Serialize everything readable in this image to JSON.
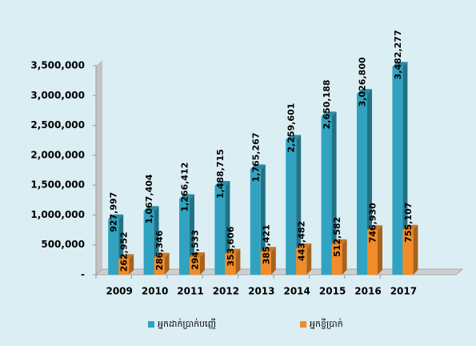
{
  "chart_data": {
    "type": "bar",
    "categories": [
      "2009",
      "2010",
      "2011",
      "2012",
      "2013",
      "2014",
      "2015",
      "2016",
      "2017"
    ],
    "series": [
      {
        "name": "អ្នកដាក់ប្រាក់បញ្ញើ",
        "color": "#31a3c0",
        "values": [
          927997,
          1067404,
          1266412,
          1488715,
          1765267,
          2259601,
          2650188,
          3026800,
          3482277
        ],
        "value_labels": [
          "927,997",
          "1,067,404",
          "1,266,412",
          "1,488,715",
          "1,765,267",
          "2,259,601",
          "2,650,188",
          "3,026,800",
          "3,482,277"
        ]
      },
      {
        "name": "អ្នកខ្ចីប្រាក់",
        "color": "#f28c28",
        "values": [
          262952,
          286346,
          294533,
          353606,
          385421,
          443482,
          512582,
          746930,
          755107
        ],
        "value_labels": [
          "262,952",
          "286,346",
          "294,533",
          "353,606",
          "385,421",
          "443,482",
          "512,582",
          "746,930",
          "755,107"
        ]
      }
    ],
    "ylim": [
      0,
      3500000
    ],
    "yticks": [
      {
        "value": 0,
        "label": "-"
      },
      {
        "value": 500000,
        "label": "500,000"
      },
      {
        "value": 1000000,
        "label": "1,000,000"
      },
      {
        "value": 1500000,
        "label": "1,500,000"
      },
      {
        "value": 2000000,
        "label": "2,000,000"
      },
      {
        "value": 2500000,
        "label": "2,500,000"
      },
      {
        "value": 3000000,
        "label": "3,000,000"
      },
      {
        "value": 3500000,
        "label": "3,500,000"
      }
    ],
    "legend": "bottom"
  }
}
